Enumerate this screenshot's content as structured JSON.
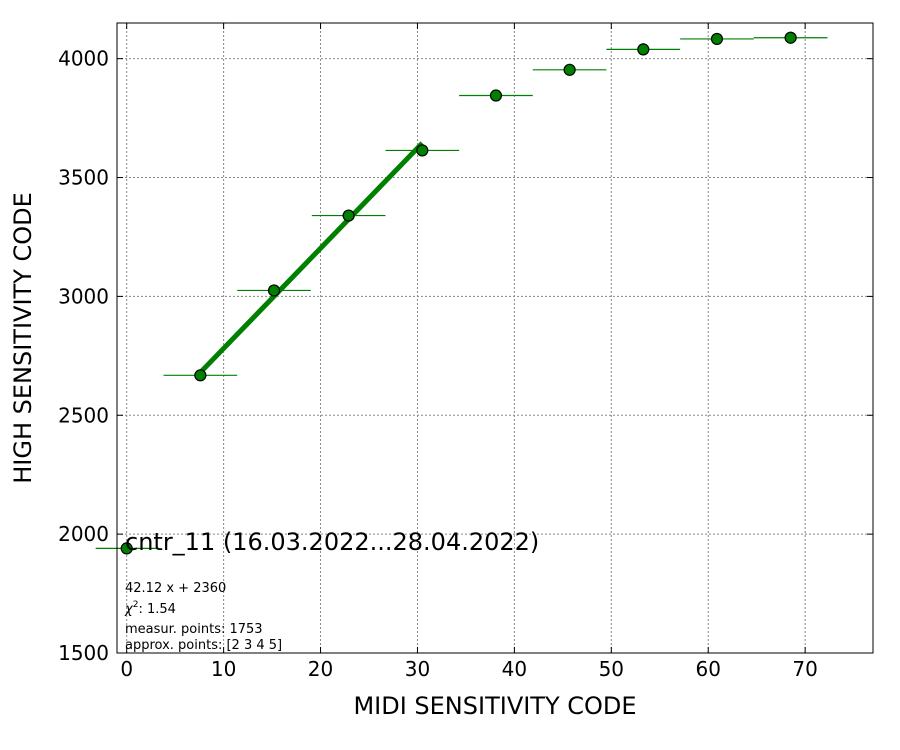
{
  "chart_data": {
    "type": "scatter",
    "xlabel": "MIDI SENSITIVITY CODE",
    "ylabel": "HIGH SENSITIVITY CODE",
    "xlim": [
      -1,
      77
    ],
    "ylim": [
      1500,
      4150
    ],
    "xticks": [
      0,
      10,
      20,
      30,
      40,
      50,
      60,
      70
    ],
    "yticks": [
      1500,
      2000,
      2500,
      3000,
      3500,
      4000
    ],
    "grid": true,
    "series": [
      {
        "type": "scatter-errorbar",
        "color": "#008000",
        "points": [
          {
            "x": 0.0,
            "y": 1940,
            "xerr": 3.2
          },
          {
            "x": 7.6,
            "y": 2668,
            "xerr": 3.8
          },
          {
            "x": 15.2,
            "y": 3025,
            "xerr": 3.8
          },
          {
            "x": 22.9,
            "y": 3340,
            "xerr": 3.8
          },
          {
            "x": 30.5,
            "y": 3614,
            "xerr": 3.8
          },
          {
            "x": 38.1,
            "y": 3845,
            "xerr": 3.8
          },
          {
            "x": 45.7,
            "y": 3953,
            "xerr": 3.8
          },
          {
            "x": 53.3,
            "y": 4039,
            "xerr": 3.8
          },
          {
            "x": 60.9,
            "y": 4083,
            "xerr": 3.8
          },
          {
            "x": 68.5,
            "y": 4088,
            "xerr": 3.8
          }
        ]
      },
      {
        "type": "fit-line",
        "color": "#008000",
        "slope": 42.12,
        "intercept": 2360,
        "x_range": [
          7.6,
          30.5
        ]
      }
    ],
    "annotations": {
      "title": "cntr_11 (16.03.2022...28.04.2022)",
      "fit": "42.12 x + 2360",
      "chi_prefix": "χ",
      "chi_sup": "2",
      "chi_value": ": 1.54",
      "measur": "measur. points: 1753",
      "approx": "approx. points: [2 3 4 5]"
    }
  }
}
